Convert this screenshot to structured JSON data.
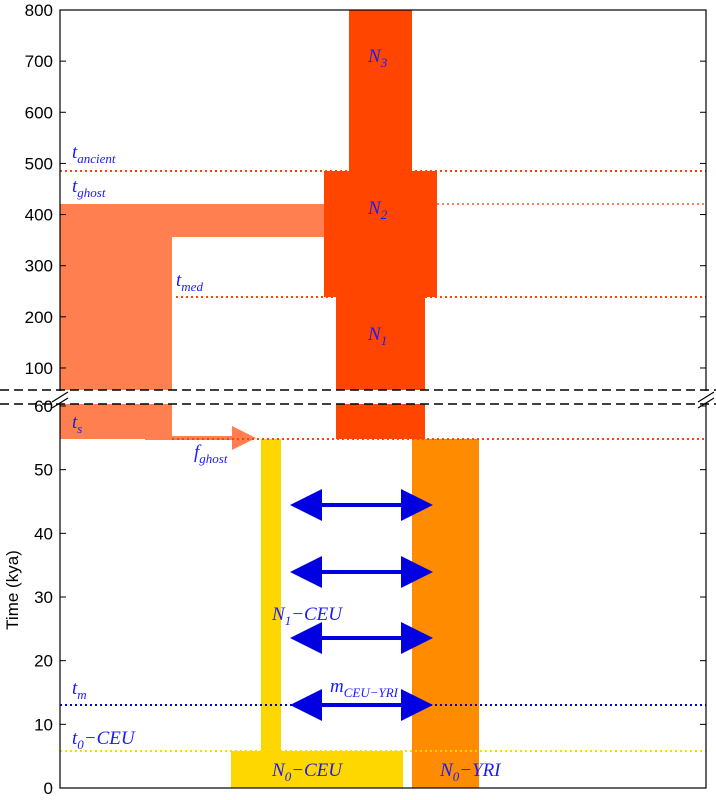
{
  "axis": {
    "label": "Time (kya)",
    "upper_ticks": [
      100,
      200,
      300,
      400,
      500,
      600,
      700,
      800
    ],
    "lower_ticks": [
      0,
      10,
      20,
      30,
      40,
      50,
      60
    ]
  },
  "labels": {
    "n3": {
      "main": "N",
      "sub": "3"
    },
    "n2": {
      "main": "N",
      "sub": "2"
    },
    "n1": {
      "main": "N",
      "sub": "1"
    },
    "t_ancient": {
      "main": "t",
      "sub": "ancient"
    },
    "t_ghost": {
      "main": "t",
      "sub": "ghost"
    },
    "t_med": {
      "main": "t",
      "sub": "med"
    },
    "t_s": {
      "main": "t",
      "sub": "s"
    },
    "f_ghost": {
      "main": "f",
      "sub": "ghost"
    },
    "n1_ceu": {
      "main": "N",
      "sub": "1",
      "rest": "−CEU"
    },
    "m_ceu_yri": {
      "main": "m",
      "sub": "CEU−YRI"
    },
    "t_m": {
      "main": "t",
      "sub": "m"
    },
    "t0_ceu": {
      "main": "t",
      "sub": "0",
      "rest": "−CEU"
    },
    "n0_ceu": {
      "main": "N",
      "sub": "0",
      "rest": "−CEU"
    },
    "n0_yri": {
      "main": "N",
      "sub": "0",
      "rest": "−YRI"
    }
  }
}
